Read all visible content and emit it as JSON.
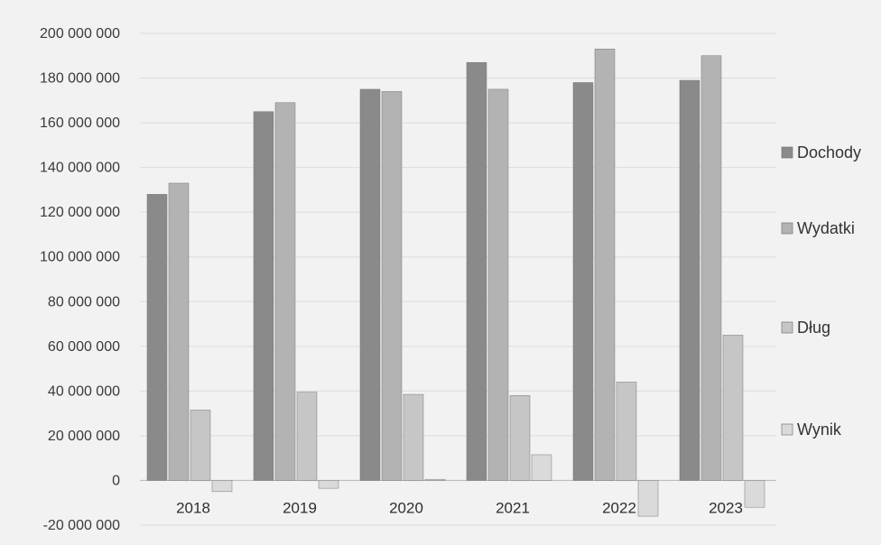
{
  "chart_data": {
    "type": "bar",
    "categories": [
      "2018",
      "2019",
      "2020",
      "2021",
      "2022",
      "2023"
    ],
    "series": [
      {
        "name": "Dochody",
        "color": "#8a8a8a",
        "values": [
          128000000,
          165000000,
          175000000,
          187000000,
          178000000,
          179000000
        ]
      },
      {
        "name": "Wydatki",
        "color": "#b3b3b3",
        "values": [
          133000000,
          169000000,
          174000000,
          175000000,
          193000000,
          190000000
        ]
      },
      {
        "name": "Dług",
        "color": "#c6c6c6",
        "values": [
          31500000,
          39500000,
          38500000,
          38000000,
          44000000,
          65000000
        ]
      },
      {
        "name": "Wynik",
        "color": "#dadada",
        "values": [
          -5000000,
          -3500000,
          500000,
          11500000,
          -16000000,
          -12000000
        ]
      }
    ],
    "ylim": [
      -20000000,
      200000000
    ],
    "yticks": [
      {
        "value": 200000000,
        "label": "200 000 000"
      },
      {
        "value": 180000000,
        "label": "180 000 000"
      },
      {
        "value": 160000000,
        "label": "160 000 000"
      },
      {
        "value": 140000000,
        "label": "140 000 000"
      },
      {
        "value": 120000000,
        "label": "120 000 000"
      },
      {
        "value": 100000000,
        "label": "100 000 000"
      },
      {
        "value": 80000000,
        "label": "80 000 000"
      },
      {
        "value": 60000000,
        "label": "60 000 000"
      },
      {
        "value": 40000000,
        "label": "40 000 000"
      },
      {
        "value": 20000000,
        "label": "20 000 000"
      },
      {
        "value": 0,
        "label": "0"
      },
      {
        "value": -20000000,
        "label": "-20 000 000"
      }
    ],
    "grid": true,
    "legend_position": "right"
  }
}
